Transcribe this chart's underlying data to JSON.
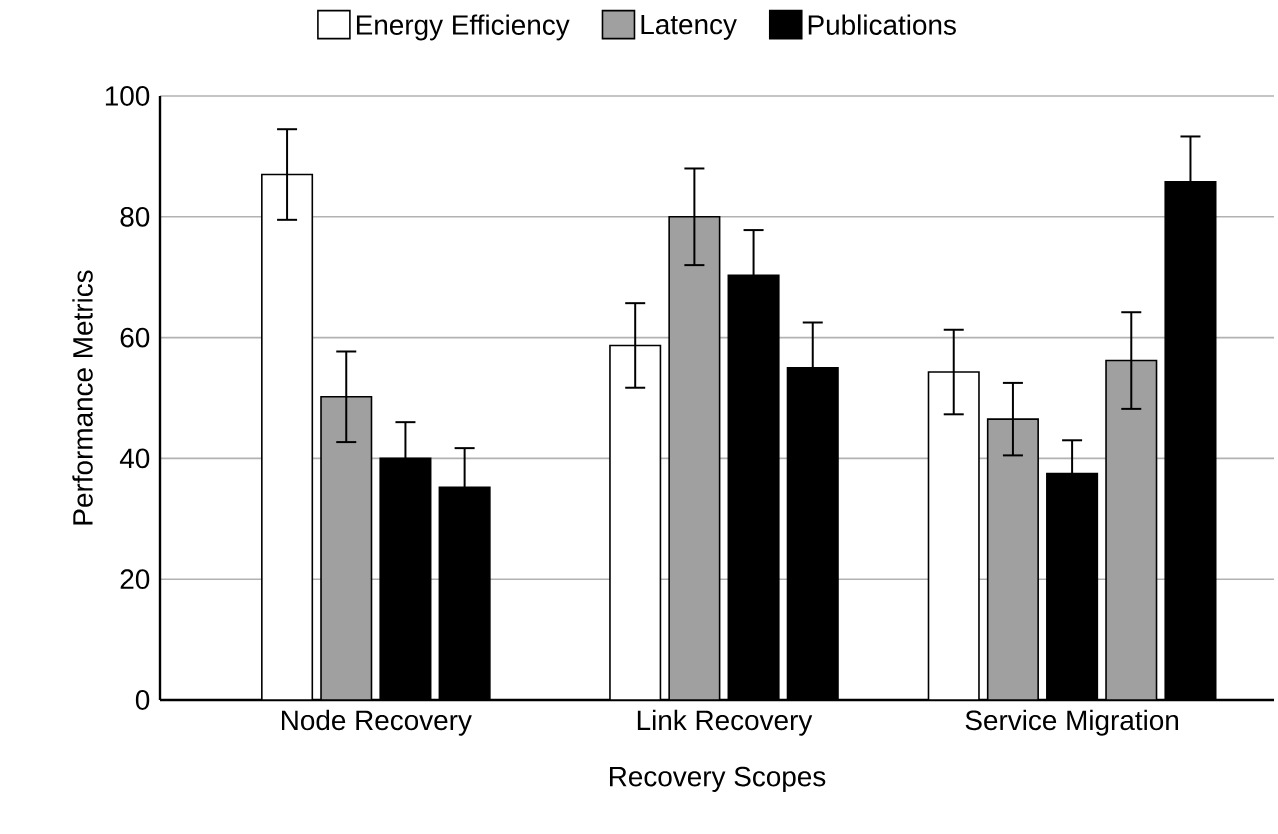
{
  "chart_data": {
    "type": "bar",
    "xlabel": "Recovery Scopes",
    "ylabel": "Performance Metrics",
    "categories": [
      "Node Recovery",
      "Link Recovery",
      "Service Migration"
    ],
    "series": [
      {
        "name": "Energy Efficiency",
        "color": "#ffffff",
        "values": [
          87,
          58.7,
          54.3
        ],
        "errors": [
          7.5,
          7,
          7
        ]
      },
      {
        "name": "Latency",
        "color": "#a0a0a0",
        "values": [
          50.2,
          80,
          46.5
        ],
        "errors": [
          7.5,
          8,
          6
        ]
      },
      {
        "name": "Publications",
        "color": "#000000",
        "values": [
          40,
          70.3,
          37.5
        ],
        "errors": [
          6,
          7.5,
          5.5
        ]
      },
      {
        "color": "#a0a0a0",
        "values": [
          null,
          null,
          56.2
        ],
        "errors": [
          null,
          null,
          8
        ]
      },
      {
        "color": "#000000",
        "values": [
          35.2,
          55,
          85.8
        ],
        "errors": [
          6.5,
          7.5,
          7.5
        ]
      }
    ],
    "ylim": [
      0,
      100
    ],
    "yticks": [
      0,
      20,
      40,
      60,
      80,
      100
    ],
    "grid": "y",
    "legend": "top"
  }
}
